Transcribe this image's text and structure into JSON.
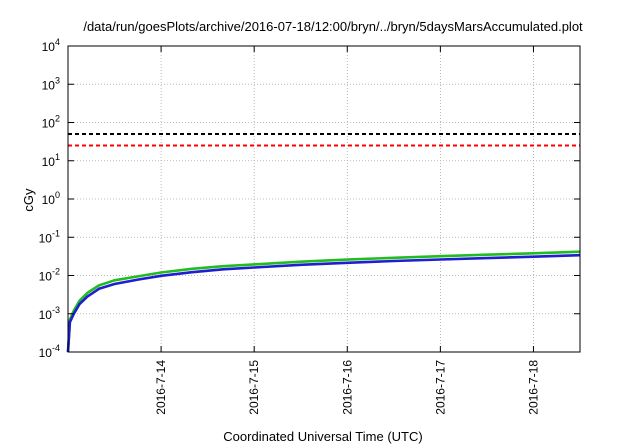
{
  "chart_data": {
    "type": "line",
    "title": "/data/run/goesPlots/archive/2016-07-18/12:00/bryn/../bryn/5daysMarsAccumulated.plot",
    "xlabel": "Coordinated Universal Time (UTC)",
    "ylabel": "cGy",
    "x_axis": {
      "scale": "time",
      "range": [
        "2016-07-13T00:00",
        "2016-07-18T12:00"
      ],
      "ticks": [
        {
          "label": "2016-7-14",
          "value": "2016-07-14T00:00"
        },
        {
          "label": "2016-7-15",
          "value": "2016-07-15T00:00"
        },
        {
          "label": "2016-7-16",
          "value": "2016-07-16T00:00"
        },
        {
          "label": "2016-7-17",
          "value": "2016-07-17T00:00"
        },
        {
          "label": "2016-7-18",
          "value": "2016-07-18T00:00"
        }
      ]
    },
    "y_axis": {
      "scale": "log",
      "range": [
        0.0001,
        10000
      ],
      "ticks": [
        {
          "base": "10",
          "exp": "-4",
          "value": 0.0001
        },
        {
          "base": "10",
          "exp": "-3",
          "value": 0.001
        },
        {
          "base": "10",
          "exp": "-2",
          "value": 0.01
        },
        {
          "base": "10",
          "exp": "-1",
          "value": 0.1
        },
        {
          "base": "10",
          "exp": "0",
          "value": 1
        },
        {
          "base": "10",
          "exp": "1",
          "value": 10
        },
        {
          "base": "10",
          "exp": "2",
          "value": 100
        },
        {
          "base": "10",
          "exp": "3",
          "value": 1000
        },
        {
          "base": "10",
          "exp": "4",
          "value": 10000
        }
      ]
    },
    "grid": true,
    "legend": "none",
    "series": [
      {
        "color": "#22bb22",
        "style": "solid",
        "x": [
          "2016-07-13T00:00",
          "2016-07-13T00:30",
          "2016-07-13T01:30",
          "2016-07-13T03:00",
          "2016-07-13T05:00",
          "2016-07-13T08:00",
          "2016-07-13T12:00",
          "2016-07-13T18:00",
          "2016-07-14T00:00",
          "2016-07-14T08:00",
          "2016-07-14T16:00",
          "2016-07-15T00:00",
          "2016-07-15T12:00",
          "2016-07-16T00:00",
          "2016-07-16T12:00",
          "2016-07-17T00:00",
          "2016-07-17T12:00",
          "2016-07-18T00:00",
          "2016-07-18T12:00"
        ],
        "y": [
          0.0001,
          0.0007,
          0.0012,
          0.0022,
          0.0035,
          0.0055,
          0.0075,
          0.0095,
          0.012,
          0.015,
          0.0175,
          0.0195,
          0.023,
          0.026,
          0.029,
          0.032,
          0.035,
          0.038,
          0.042
        ]
      },
      {
        "color": "#1f1fd0",
        "style": "solid",
        "x": [
          "2016-07-13T00:00",
          "2016-07-13T00:30",
          "2016-07-13T01:30",
          "2016-07-13T03:00",
          "2016-07-13T05:00",
          "2016-07-13T08:00",
          "2016-07-13T12:00",
          "2016-07-13T18:00",
          "2016-07-14T00:00",
          "2016-07-14T08:00",
          "2016-07-14T16:00",
          "2016-07-15T00:00",
          "2016-07-15T12:00",
          "2016-07-16T00:00",
          "2016-07-16T12:00",
          "2016-07-17T00:00",
          "2016-07-17T12:00",
          "2016-07-18T00:00",
          "2016-07-18T12:00"
        ],
        "y": [
          0.0001,
          0.0006,
          0.001,
          0.0018,
          0.0028,
          0.0045,
          0.006,
          0.0078,
          0.0098,
          0.0122,
          0.0145,
          0.0162,
          0.019,
          0.0215,
          0.024,
          0.0262,
          0.0285,
          0.031,
          0.034
        ]
      }
    ],
    "reference_lines": [
      {
        "value": 50,
        "color": "#000000",
        "style": "dashed"
      },
      {
        "value": 25,
        "color": "#ff0000",
        "style": "dashed"
      }
    ]
  }
}
